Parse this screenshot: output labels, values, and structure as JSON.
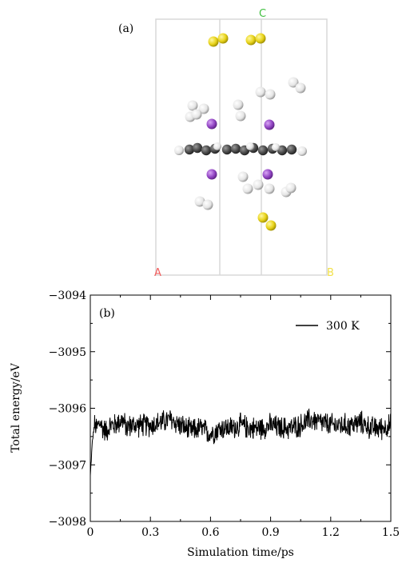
{
  "panel_a": {
    "label": "(a)",
    "axis_letters": {
      "a": "A",
      "b": "B",
      "c": "C"
    },
    "colors": {
      "a": "#f25c5c",
      "b": "#f2e14a",
      "c": "#3fbf3f",
      "cell": "#d6d6d6",
      "sulfur": "#e6d21a",
      "hydrogen": "#f2f2f2",
      "carbon": "#555555",
      "metal": "#9b4fc7"
    }
  },
  "panel_b": {
    "label": "(b)"
  },
  "chart_data": {
    "type": "line",
    "title": "",
    "xlabel": "Simulation time/ps",
    "ylabel": "Total energy/eV",
    "xlim": [
      0,
      1.5
    ],
    "ylim": [
      -3098,
      -3094
    ],
    "xticks": [
      0,
      0.3,
      0.6,
      0.9,
      1.2,
      1.5
    ],
    "xtick_labels": [
      "0",
      "0.3",
      "0.6",
      "0.9",
      "1.2",
      "1.5"
    ],
    "yticks": [
      -3094,
      -3095,
      -3096,
      -3097,
      -3098
    ],
    "ytick_labels": [
      "−3094",
      "−3095",
      "−3096",
      "−3097",
      "−3098"
    ],
    "legend": {
      "position": "top-right",
      "entries": [
        "300 K"
      ]
    },
    "series": [
      {
        "name": "300 K",
        "color": "#000000",
        "x": [
          0,
          0.005,
          0.01,
          0.015,
          0.02,
          0.03,
          0.04,
          0.05,
          0.06,
          0.08,
          0.1,
          0.12,
          0.14,
          0.16,
          0.18,
          0.2,
          0.25,
          0.3,
          0.35,
          0.4,
          0.45,
          0.5,
          0.55,
          0.6,
          0.65,
          0.7,
          0.75,
          0.8,
          0.85,
          0.9,
          0.95,
          1.0,
          1.05,
          1.1,
          1.15,
          1.2,
          1.25,
          1.3,
          1.35,
          1.4,
          1.45,
          1.5
        ],
        "y": [
          -3097.2,
          -3096.9,
          -3096.6,
          -3096.45,
          -3096.3,
          -3096.35,
          -3096.3,
          -3096.25,
          -3096.35,
          -3096.4,
          -3096.3,
          -3096.3,
          -3096.25,
          -3096.2,
          -3096.35,
          -3096.3,
          -3096.3,
          -3096.3,
          -3096.25,
          -3096.2,
          -3096.3,
          -3096.4,
          -3096.35,
          -3096.45,
          -3096.35,
          -3096.35,
          -3096.3,
          -3096.35,
          -3096.35,
          -3096.3,
          -3096.35,
          -3096.35,
          -3096.3,
          -3096.2,
          -3096.25,
          -3096.3,
          -3096.3,
          -3096.3,
          -3096.25,
          -3096.35,
          -3096.35,
          -3096.3
        ]
      }
    ]
  }
}
